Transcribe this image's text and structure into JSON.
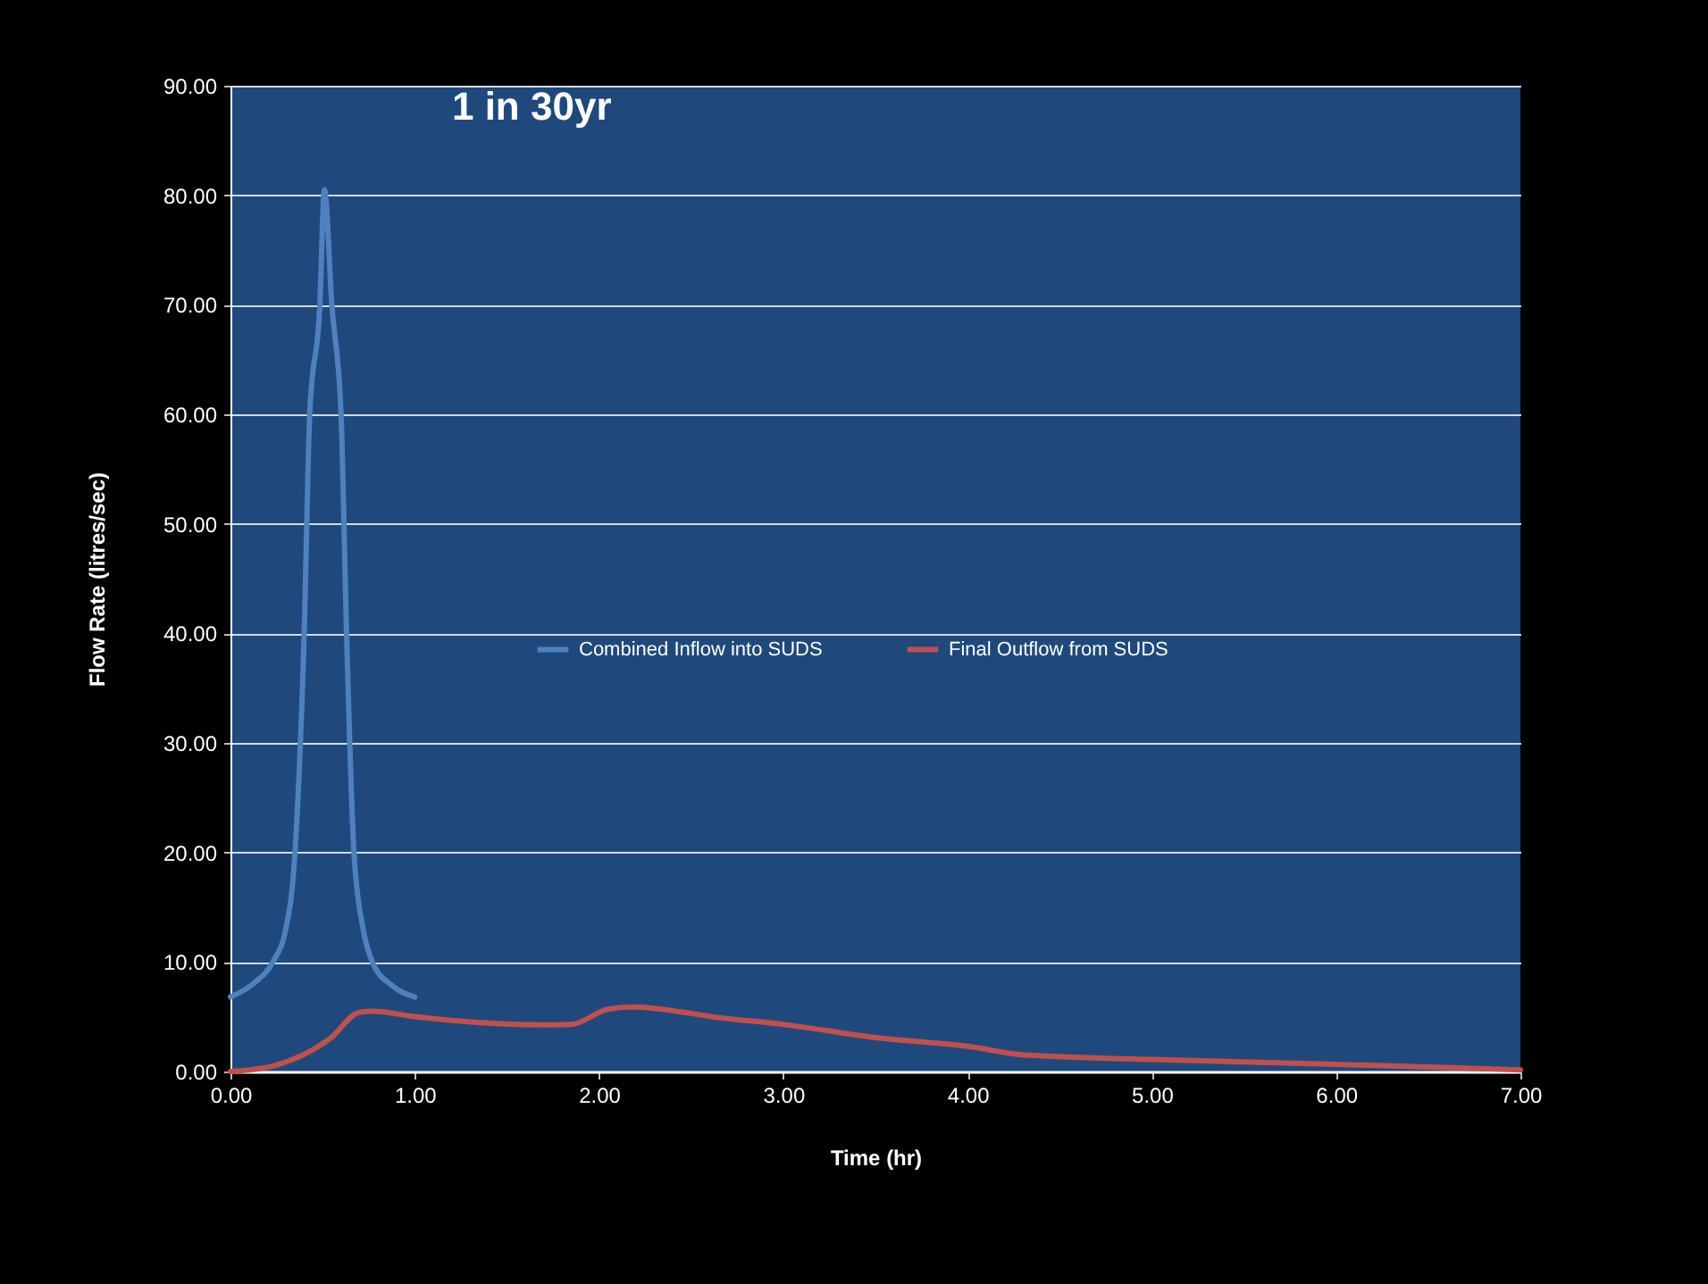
{
  "chart_data": {
    "type": "line",
    "title": "1 in 30yr",
    "xlabel": "Time (hr)",
    "ylabel": "Flow Rate (litres/sec)",
    "xlim": [
      0,
      7
    ],
    "xticks": [
      {
        "value": 0,
        "label": "0.00"
      },
      {
        "value": 1,
        "label": "1.00"
      },
      {
        "value": 2,
        "label": "2.00"
      },
      {
        "value": 3,
        "label": "3.00"
      },
      {
        "value": 4,
        "label": "4.00"
      },
      {
        "value": 5,
        "label": "5.00"
      },
      {
        "value": 6,
        "label": "6.00"
      },
      {
        "value": 7,
        "label": "7.00"
      }
    ],
    "ylim": [
      0,
      90
    ],
    "yticks": [
      {
        "value": 0,
        "label": "0.00"
      },
      {
        "value": 10,
        "label": "10.00"
      },
      {
        "value": 20,
        "label": "20.00"
      },
      {
        "value": 30,
        "label": "30.00"
      },
      {
        "value": 40,
        "label": "40.00"
      },
      {
        "value": 50,
        "label": "50.00"
      },
      {
        "value": 60,
        "label": "60.00"
      },
      {
        "value": 70,
        "label": "70.00"
      },
      {
        "value": 80,
        "label": "80.00"
      },
      {
        "value": 90,
        "label": "90.00"
      }
    ],
    "grid": "y",
    "legend": "center",
    "series": [
      {
        "name": "Combined Inflow into SUDS",
        "color": "#4f81bd",
        "x": [
          0,
          0.13,
          0.23,
          0.3,
          0.35,
          0.4,
          0.43,
          0.485,
          0.51,
          0.55,
          0.6,
          0.63,
          0.67,
          0.72,
          0.77,
          0.88,
          1.0
        ],
        "values": [
          6.8,
          8.1,
          10,
          13,
          20,
          40,
          60,
          70,
          80.5,
          70,
          60,
          40,
          20,
          13,
          10,
          7.8,
          6.8
        ]
      },
      {
        "name": "Final Outflow from SUDS",
        "color": "#c0504d",
        "x": [
          0,
          0.23,
          0.54,
          0.7,
          0.78,
          0.98,
          1.69,
          1.85,
          2.05,
          2.18,
          2.66,
          3.02,
          3.5,
          4.0,
          4.31,
          5.0,
          6.0,
          7.0
        ],
        "values": [
          0,
          0.5,
          3.0,
          5.4,
          5.5,
          5.05,
          4.25,
          4.3,
          5.7,
          5.9,
          4.9,
          4.25,
          3.1,
          2.3,
          1.5,
          1.1,
          0.65,
          0.15
        ]
      }
    ]
  }
}
